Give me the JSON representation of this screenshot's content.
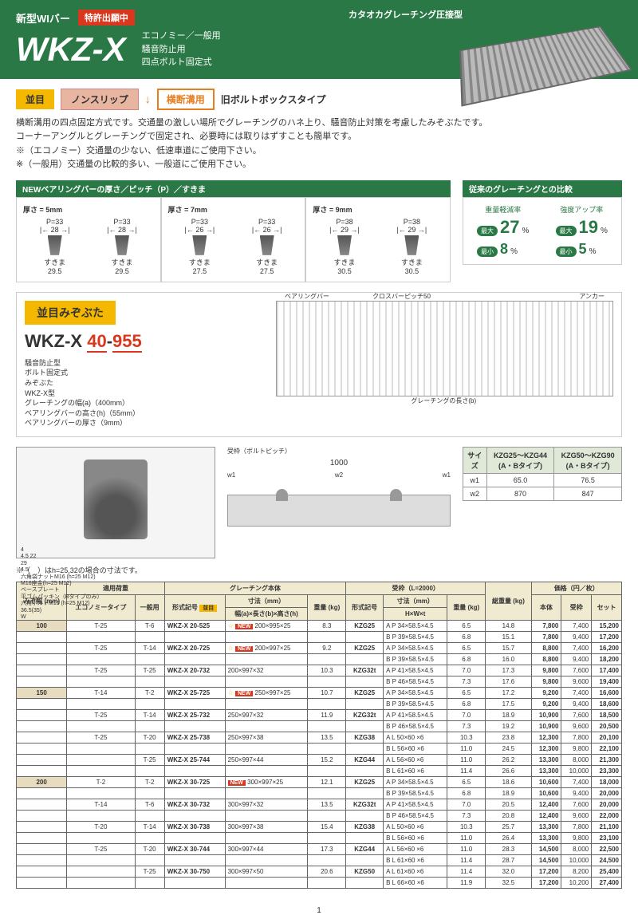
{
  "header": {
    "newType": "新型WIバー",
    "patent": "特許出願中",
    "brand": "カタオカグレーチング圧接型",
    "title": "WKZ-X",
    "sub1": "エコノミー／一般用",
    "sub2": "騒音防止用",
    "sub3": "四点ボルト固定式"
  },
  "tags": {
    "t1": "並目",
    "t2": "ノンスリップ",
    "t3": "横断溝用",
    "t4": "旧ボルトボックスタイプ"
  },
  "desc": "横断溝用の四点固定方式です。交通量の激しい場所でグレーチングのハネ上り、騒音防止対策を考慮したみぞぶたです。\nコーナーアングルとグレーチングで固定され、必要時には取りはずすことも簡単です。\n※（エコノミー）交通量の少ない、低速車道にご使用下さい。\n※（一般用）交通量の比較的多い、一般道にご使用下さい。",
  "barHdr": "NEWベアリングバーの厚さ／ピッチ（P）／すきま",
  "bars": [
    {
      "thick": "厚さ = 5mm",
      "p": "P=33",
      "w": "28",
      "gap": "すきま",
      "gv": "29.5"
    },
    {
      "thick": "厚さ = 7mm",
      "p": "P=33",
      "w": "26",
      "gap": "すきま",
      "gv": "27.5"
    },
    {
      "thick": "厚さ = 9mm",
      "p": "P=38",
      "w": "29",
      "gap": "すきま",
      "gv": "30.5"
    }
  ],
  "compHdr": "従来のグレーチングとの比較",
  "comp": [
    {
      "lbl": "重量軽減率",
      "max": "27",
      "min": "8"
    },
    {
      "lbl": "強度アップ率",
      "max": "19",
      "min": "5"
    }
  ],
  "model": {
    "hdr": "並目みぞぶた",
    "num": "WKZ-X 40-955",
    "l1": "騒音防止型",
    "l2": "ボルト固定式",
    "l3": "みぞぶた",
    "l4": "WKZ-X型",
    "l5": "グレーチングの幅(a)（400mm）",
    "l6": "ベアリングバーの高さ(h)（55mm）",
    "l7": "ベアリングバーの厚さ（9mm）",
    "dia": [
      "ベアリングバー",
      "クロスバーピッチ50",
      "アンカー"
    ]
  },
  "tech": {
    "left": [
      "4",
      "4.5 22",
      "29",
      "4.5",
      "六角袋ナットM16 (h=25 M12)",
      "M16座金(h=25 M12)",
      "ベースプレート",
      "平ゴムパッキン（Bタイプのみ）",
      "六角ボルトM16 (h=25 M12)",
      "36.5(35)",
      "W"
    ],
    "mid": {
      "lbl": "受枠（ボルトピッチ）",
      "dim": "1000",
      "w1": "w1",
      "w2": "w2"
    }
  },
  "miniTbl": {
    "h": [
      "サイズ",
      "KZG25～KZG44 (A・Bタイプ)",
      "KZG50～KZG90 (A・Bタイプ)"
    ],
    "r1": [
      "w1",
      "65.0",
      "76.5"
    ],
    "r2": [
      "w2",
      "870",
      "847"
    ]
  },
  "note": "※（　）はh=25,32の場合の寸法です。",
  "mainHdr": {
    "c1": "みぞ幅 (mm)",
    "c2": "適用荷重",
    "c3": "グレーチング本体",
    "c4": "受枠（L=2000）",
    "c5": "総重量 (kg)",
    "c6": "価格（円／枚）",
    "s1": "エコノミータイプ",
    "s2": "一般用",
    "s3": "形式記号",
    "s3b": "並目",
    "s4": "寸法（mm）",
    "s5": "重量 (kg)",
    "s6": "形式記号",
    "s7": "寸法（mm）",
    "s8": "重量 (kg)",
    "s9": "本体",
    "s10": "受枠",
    "s11": "セット",
    "d1": "幅(a)×長さ(b)×高さ(h)",
    "d2": "H×W×t"
  },
  "rows": [
    {
      "w": "100",
      "e": "T-25",
      "g": "T-6",
      "m": "WKZ-X 20-525",
      "new": 1,
      "star": 1,
      "dim": "200×995×25",
      "kg": "8.3",
      "f": "KZG25",
      "ab": "A",
      "sd": "P 34×58.5×4.5",
      "skg": "6.5",
      "tkg": "14.8",
      "p1": "7,800",
      "p2": "7,400",
      "p3": "15,200"
    },
    {
      "w": "",
      "e": "",
      "g": "",
      "m": "",
      "new": 0,
      "star": 0,
      "dim": "",
      "kg": "",
      "f": "",
      "ab": "B",
      "sd": "P 39×58.5×4.5",
      "skg": "6.8",
      "tkg": "15.1",
      "p1": "7,800",
      "p2": "9,400",
      "p3": "17,200"
    },
    {
      "w": "",
      "e": "T-25",
      "g": "T-14",
      "m": "WKZ-X 20-725",
      "new": 1,
      "star": 1,
      "dim": "200×997×25",
      "kg": "9.2",
      "f": "KZG25",
      "ab": "A",
      "sd": "P 34×58.5×4.5",
      "skg": "6.5",
      "tkg": "15.7",
      "p1": "8,800",
      "p2": "7,400",
      "p3": "16,200"
    },
    {
      "w": "",
      "e": "",
      "g": "",
      "m": "",
      "new": 0,
      "star": 0,
      "dim": "",
      "kg": "",
      "f": "",
      "ab": "B",
      "sd": "P 39×58.5×4.5",
      "skg": "6.8",
      "tkg": "16.0",
      "p1": "8,800",
      "p2": "9,400",
      "p3": "18,200"
    },
    {
      "w": "",
      "e": "T-25",
      "g": "T-25",
      "m": "WKZ-X 20-732",
      "new": 0,
      "star": 0,
      "dim": "200×997×32",
      "kg": "10.3",
      "f": "KZG32t",
      "ab": "A",
      "sd": "P 41×58.5×4.5",
      "skg": "7.0",
      "tkg": "17.3",
      "p1": "9,800",
      "p2": "7,600",
      "p3": "17,400"
    },
    {
      "w": "",
      "e": "",
      "g": "",
      "m": "",
      "new": 0,
      "star": 0,
      "dim": "",
      "kg": "",
      "f": "",
      "ab": "B",
      "sd": "P 46×58.5×4.5",
      "skg": "7.3",
      "tkg": "17.6",
      "p1": "9,800",
      "p2": "9,600",
      "p3": "19,400"
    },
    {
      "w": "150",
      "e": "T-14",
      "g": "T-2",
      "m": "WKZ-X 25-725",
      "new": 1,
      "star": 1,
      "dim": "250×997×25",
      "kg": "10.7",
      "f": "KZG25",
      "ab": "A",
      "sd": "P 34×58.5×4.5",
      "skg": "6.5",
      "tkg": "17.2",
      "p1": "9,200",
      "p2": "7,400",
      "p3": "16,600"
    },
    {
      "w": "",
      "e": "",
      "g": "",
      "m": "",
      "new": 0,
      "star": 0,
      "dim": "",
      "kg": "",
      "f": "",
      "ab": "B",
      "sd": "P 39×58.5×4.5",
      "skg": "6.8",
      "tkg": "17.5",
      "p1": "9,200",
      "p2": "9,400",
      "p3": "18,600"
    },
    {
      "w": "",
      "e": "T-25",
      "g": "T-14",
      "m": "WKZ-X 25-732",
      "new": 0,
      "star": 0,
      "dim": "250×997×32",
      "kg": "11.9",
      "f": "KZG32t",
      "ab": "A",
      "sd": "P 41×58.5×4.5",
      "skg": "7.0",
      "tkg": "18.9",
      "p1": "10,900",
      "p2": "7,600",
      "p3": "18,500"
    },
    {
      "w": "",
      "e": "",
      "g": "",
      "m": "",
      "new": 0,
      "star": 0,
      "dim": "",
      "kg": "",
      "f": "",
      "ab": "B",
      "sd": "P 46×58.5×4.5",
      "skg": "7.3",
      "tkg": "19.2",
      "p1": "10,900",
      "p2": "9,600",
      "p3": "20,500"
    },
    {
      "w": "",
      "e": "T-25",
      "g": "T-20",
      "m": "WKZ-X 25-738",
      "new": 0,
      "star": 0,
      "dim": "250×997×38",
      "kg": "13.5",
      "f": "KZG38",
      "ab": "A",
      "sd": "L  50×60 ×6",
      "skg": "10.3",
      "tkg": "23.8",
      "p1": "12,300",
      "p2": "7,800",
      "p3": "20,100"
    },
    {
      "w": "",
      "e": "",
      "g": "",
      "m": "",
      "new": 0,
      "star": 0,
      "dim": "",
      "kg": "",
      "f": "",
      "ab": "B",
      "sd": "L  56×60 ×6",
      "skg": "11.0",
      "tkg": "24.5",
      "p1": "12,300",
      "p2": "9,800",
      "p3": "22,100"
    },
    {
      "w": "",
      "e": "",
      "g": "T-25",
      "m": "WKZ-X 25-744",
      "new": 0,
      "star": 0,
      "dim": "250×997×44",
      "kg": "15.2",
      "f": "KZG44",
      "ab": "A",
      "sd": "L  56×60 ×6",
      "skg": "11.0",
      "tkg": "26.2",
      "p1": "13,300",
      "p2": "8,000",
      "p3": "21,300"
    },
    {
      "w": "",
      "e": "",
      "g": "",
      "m": "",
      "new": 0,
      "star": 0,
      "dim": "",
      "kg": "",
      "f": "",
      "ab": "B",
      "sd": "L  61×60 ×6",
      "skg": "11.4",
      "tkg": "26.6",
      "p1": "13,300",
      "p2": "10,000",
      "p3": "23,300"
    },
    {
      "w": "200",
      "e": "T-2",
      "g": "T-2",
      "m": "WKZ-X 30-725",
      "new": 1,
      "star": 0,
      "dim": "300×997×25",
      "kg": "12.1",
      "f": "KZG25",
      "ab": "A",
      "sd": "P 34×58.5×4.5",
      "skg": "6.5",
      "tkg": "18.6",
      "p1": "10,600",
      "p2": "7,400",
      "p3": "18,000"
    },
    {
      "w": "",
      "e": "",
      "g": "",
      "m": "",
      "new": 0,
      "star": 0,
      "dim": "",
      "kg": "",
      "f": "",
      "ab": "B",
      "sd": "P 39×58.5×4.5",
      "skg": "6.8",
      "tkg": "18.9",
      "p1": "10,600",
      "p2": "9,400",
      "p3": "20,000"
    },
    {
      "w": "",
      "e": "T-14",
      "g": "T-6",
      "m": "WKZ-X 30-732",
      "new": 0,
      "star": 0,
      "dim": "300×997×32",
      "kg": "13.5",
      "f": "KZG32t",
      "ab": "A",
      "sd": "P 41×58.5×4.5",
      "skg": "7.0",
      "tkg": "20.5",
      "p1": "12,400",
      "p2": "7,600",
      "p3": "20,000"
    },
    {
      "w": "",
      "e": "",
      "g": "",
      "m": "",
      "new": 0,
      "star": 0,
      "dim": "",
      "kg": "",
      "f": "",
      "ab": "B",
      "sd": "P 46×58.5×4.5",
      "skg": "7.3",
      "tkg": "20.8",
      "p1": "12,400",
      "p2": "9,600",
      "p3": "22,000"
    },
    {
      "w": "",
      "e": "T-20",
      "g": "T-14",
      "m": "WKZ-X 30-738",
      "new": 0,
      "star": 0,
      "dim": "300×997×38",
      "kg": "15.4",
      "f": "KZG38",
      "ab": "A",
      "sd": "L  50×60 ×6",
      "skg": "10.3",
      "tkg": "25.7",
      "p1": "13,300",
      "p2": "7,800",
      "p3": "21,100"
    },
    {
      "w": "",
      "e": "",
      "g": "",
      "m": "",
      "new": 0,
      "star": 0,
      "dim": "",
      "kg": "",
      "f": "",
      "ab": "B",
      "sd": "L  56×60 ×6",
      "skg": "11.0",
      "tkg": "26.4",
      "p1": "13,300",
      "p2": "9,800",
      "p3": "23,100"
    },
    {
      "w": "",
      "e": "T-25",
      "g": "T-20",
      "m": "WKZ-X 30-744",
      "new": 0,
      "star": 0,
      "dim": "300×997×44",
      "kg": "17.3",
      "f": "KZG44",
      "ab": "A",
      "sd": "L  56×60 ×6",
      "skg": "11.0",
      "tkg": "28.3",
      "p1": "14,500",
      "p2": "8,000",
      "p3": "22,500"
    },
    {
      "w": "",
      "e": "",
      "g": "",
      "m": "",
      "new": 0,
      "star": 0,
      "dim": "",
      "kg": "",
      "f": "",
      "ab": "B",
      "sd": "L  61×60 ×6",
      "skg": "11.4",
      "tkg": "28.7",
      "p1": "14,500",
      "p2": "10,000",
      "p3": "24,500"
    },
    {
      "w": "",
      "e": "",
      "g": "T-25",
      "m": "WKZ-X 30-750",
      "new": 0,
      "star": 0,
      "dim": "300×997×50",
      "kg": "20.6",
      "f": "KZG50",
      "ab": "A",
      "sd": "L  61×60 ×6",
      "skg": "11.4",
      "tkg": "32.0",
      "p1": "17,200",
      "p2": "8,200",
      "p3": "25,400"
    },
    {
      "w": "",
      "e": "",
      "g": "",
      "m": "",
      "new": 0,
      "star": 0,
      "dim": "",
      "kg": "",
      "f": "",
      "ab": "B",
      "sd": "L  66×60 ×6",
      "skg": "11.9",
      "tkg": "32.5",
      "p1": "17,200",
      "p2": "10,200",
      "p3": "27,400"
    }
  ],
  "page": "1"
}
